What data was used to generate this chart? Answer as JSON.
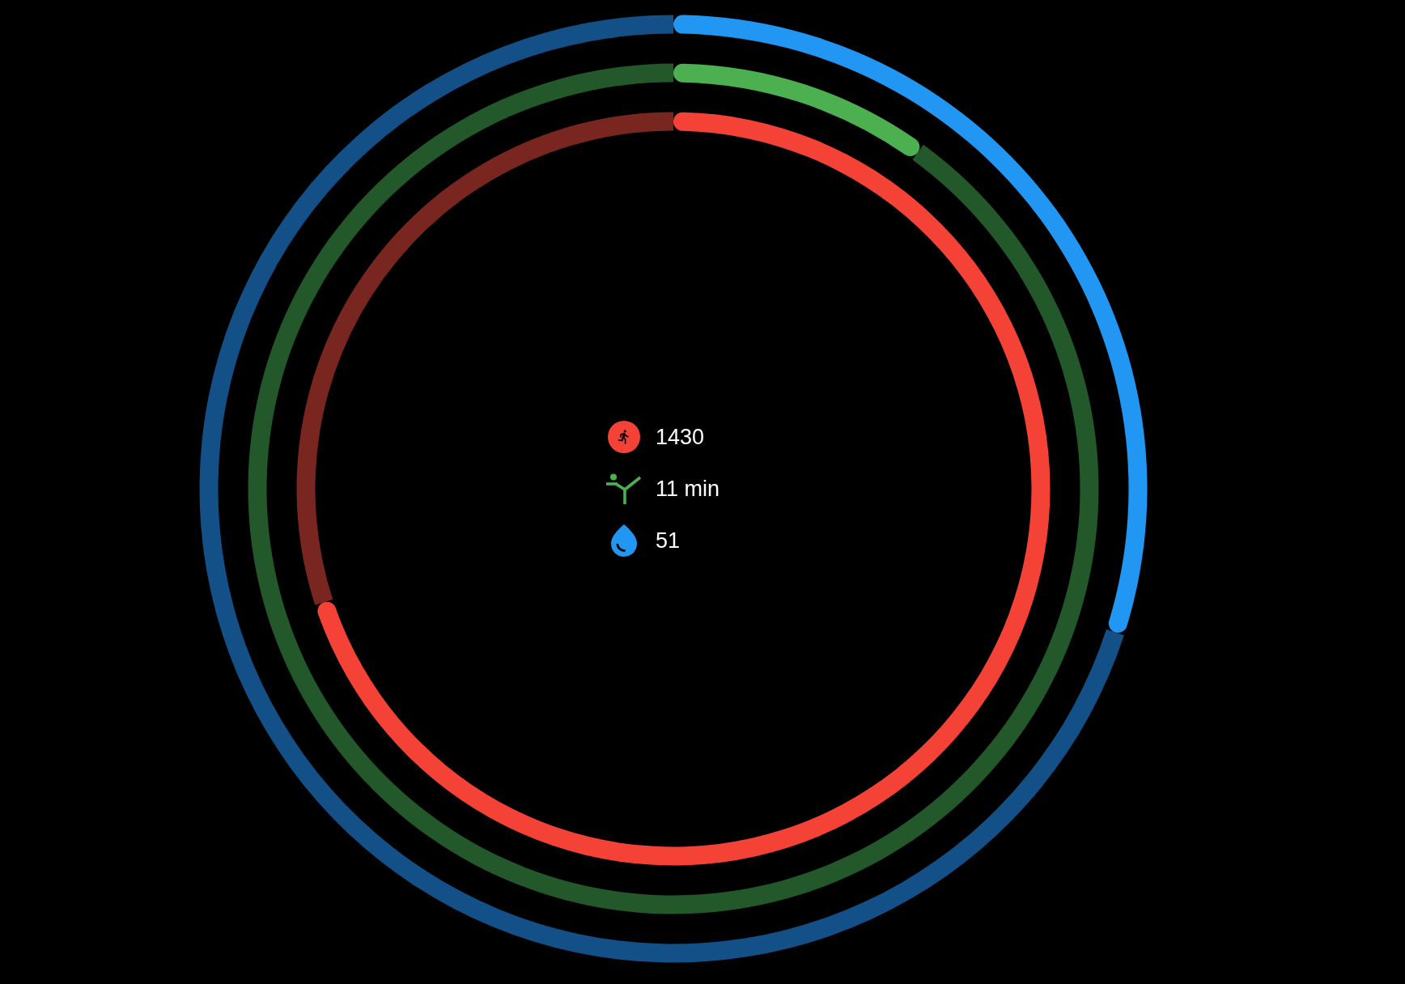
{
  "chart_data": [
    {
      "type": "donut",
      "categories": [
        "1430",
        null
      ],
      "values": [
        70,
        30
      ],
      "colors": [
        "#f44336",
        "#7a2620"
      ],
      "legend": "center"
    },
    {
      "type": "donut",
      "categories": [
        "11 min",
        null
      ],
      "values": [
        10,
        90
      ],
      "colors": [
        "#4caf50",
        "#22582a"
      ],
      "legend": "center"
    },
    {
      "type": "donut",
      "categories": [
        "51",
        null
      ],
      "values": [
        30,
        70
      ],
      "colors": [
        "#2196f3",
        "#125087"
      ],
      "legend": "center"
    }
  ]
}
